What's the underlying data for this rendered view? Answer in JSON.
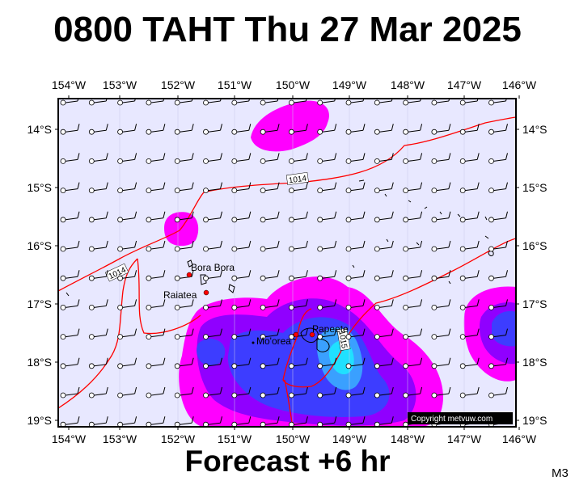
{
  "title": "0800 TAHT Thu 27 Mar 2025",
  "footer": "Forecast +6 hr",
  "model_label": "M3",
  "copyright": "Copyright metvuw.com",
  "lon_labels": [
    "154°W",
    "153°W",
    "152°W",
    "151°W",
    "150°W",
    "149°W",
    "148°W",
    "147°W",
    "146°W"
  ],
  "lat_labels": [
    "14°S",
    "15°S",
    "16°S",
    "17°S",
    "18°S",
    "19°S"
  ],
  "places": [
    {
      "name": "Bora Bora",
      "lon": -151.75,
      "lat": -16.5
    },
    {
      "name": "Raiatea",
      "lon": -151.45,
      "lat": -16.8
    },
    {
      "name": "Mo'orea",
      "lon": -149.83,
      "lat": -17.55
    },
    {
      "name": "Papeete",
      "lon": -149.57,
      "lat": -17.53
    }
  ],
  "isobar_labels": [
    "1014",
    "1014",
    "1015"
  ],
  "colors": {
    "background": "#e8e8ff",
    "rain_light": "#ff00ff",
    "rain_medium": "#8000ff",
    "rain_heavy": "#3040ff",
    "rain_intense": "#00d8ff",
    "isobar": "#ff0000"
  }
}
